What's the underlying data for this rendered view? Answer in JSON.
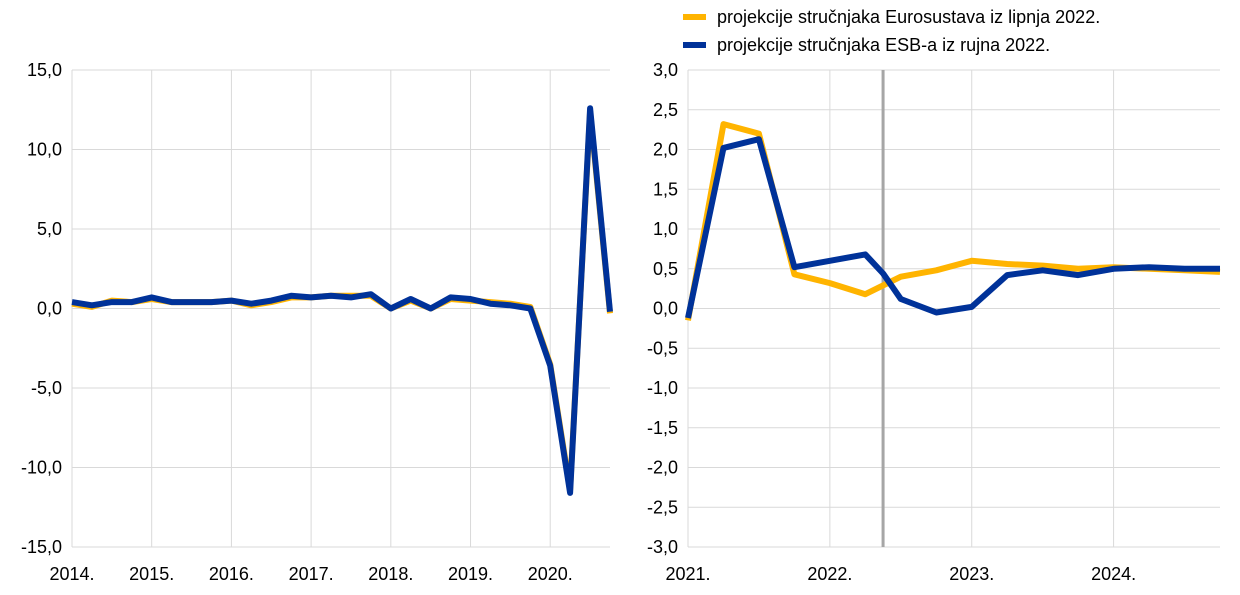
{
  "legend": {
    "items": [
      {
        "label": "projekcije stručnjaka Eurosustava iz lipnja 2022.",
        "color": "#FFB400"
      },
      {
        "label": "projekcije stručnjaka ESB-a iz rujna 2022.",
        "color": "#003299"
      }
    ],
    "placement": "top-right"
  },
  "chart_data": [
    {
      "type": "line",
      "title": "",
      "xlabel": "",
      "ylabel": "",
      "grid": true,
      "ylim": [
        -15,
        15
      ],
      "yticks": [
        "15,0",
        "10,0",
        "5,0",
        "0,0",
        "-5,0",
        "-10,0",
        "-15,0"
      ],
      "ytick_values": [
        15,
        10,
        5,
        0,
        -5,
        -10,
        -15
      ],
      "xlim": [
        2014,
        2020.75
      ],
      "xticks": [
        "2014.",
        "2015.",
        "2016.",
        "2017.",
        "2018.",
        "2019.",
        "2020."
      ],
      "xtick_values": [
        2014,
        2015,
        2016,
        2017,
        2018,
        2019,
        2020
      ],
      "x": [
        2014,
        2014.25,
        2014.5,
        2014.75,
        2015,
        2015.25,
        2015.5,
        2015.75,
        2016,
        2016.25,
        2016.5,
        2016.75,
        2017,
        2017.25,
        2017.5,
        2017.75,
        2018,
        2018.25,
        2018.5,
        2018.75,
        2019,
        2019.25,
        2019.5,
        2019.75,
        2020,
        2020.25,
        2020.5,
        2020.75
      ],
      "series": [
        {
          "name": "projekcije stručnjaka Eurosustava iz lipnja 2022.",
          "color": "#FFB400",
          "values": [
            0.3,
            0.1,
            0.5,
            0.4,
            0.6,
            0.4,
            0.4,
            0.4,
            0.5,
            0.2,
            0.4,
            0.7,
            0.7,
            0.8,
            0.8,
            0.8,
            0.0,
            0.5,
            0.0,
            0.6,
            0.5,
            0.4,
            0.3,
            0.1,
            -3.5,
            -11.4,
            12.4,
            -0.3
          ]
        },
        {
          "name": "projekcije stručnjaka ESB-a iz rujna 2022.",
          "color": "#003299",
          "values": [
            0.4,
            0.2,
            0.4,
            0.4,
            0.7,
            0.4,
            0.4,
            0.4,
            0.5,
            0.3,
            0.5,
            0.8,
            0.7,
            0.8,
            0.7,
            0.9,
            0.0,
            0.6,
            0.0,
            0.7,
            0.6,
            0.3,
            0.2,
            0.0,
            -3.6,
            -11.6,
            12.6,
            -0.2
          ]
        }
      ]
    },
    {
      "type": "line",
      "title": "",
      "xlabel": "",
      "ylabel": "",
      "grid": true,
      "ylim": [
        -3,
        3
      ],
      "yticks": [
        "3,0",
        "2,5",
        "2,0",
        "1,5",
        "1,0",
        "0,5",
        "0,0",
        "-0,5",
        "-1,0",
        "-1,5",
        "-2,0",
        "-2,5",
        "-3,0"
      ],
      "ytick_values": [
        3,
        2.5,
        2,
        1.5,
        1,
        0.5,
        0,
        -0.5,
        -1,
        -1.5,
        -2,
        -2.5,
        -3
      ],
      "xlim": [
        2021,
        2024.75
      ],
      "xticks": [
        "2021.",
        "2022.",
        "2023.",
        "2024."
      ],
      "xtick_values": [
        2021,
        2022,
        2023,
        2024
      ],
      "vertical_line_at": 2022.375,
      "vertical_line_color": "#A6A6A6",
      "x": [
        2021,
        2021.25,
        2021.5,
        2021.75,
        2022,
        2022.25,
        2022.5,
        2022.75,
        2023,
        2023.25,
        2023.5,
        2023.75,
        2024,
        2024.25,
        2024.5,
        2024.75
      ],
      "series": [
        {
          "name": "projekcije stručnjaka Eurosustava iz lipnja 2022.",
          "color": "#FFB400",
          "x": [
            2021,
            2021.25,
            2021.5,
            2021.75,
            2022,
            2022.25,
            2022.5,
            2022.75,
            2023,
            2023.25,
            2023.5,
            2023.75,
            2024,
            2024.25,
            2024.5,
            2024.75
          ],
          "values": [
            -0.15,
            2.32,
            2.2,
            0.43,
            0.32,
            0.18,
            0.4,
            0.48,
            0.6,
            0.56,
            0.54,
            0.5,
            0.52,
            0.5,
            0.48,
            0.46
          ]
        },
        {
          "name": "projekcije stručnjaka ESB-a iz rujna 2022.",
          "color": "#003299",
          "x": [
            2021,
            2021.25,
            2021.5,
            2021.75,
            2022,
            2022.25,
            2022.375,
            2022.5,
            2022.75,
            2023,
            2023.25,
            2023.5,
            2023.75,
            2024,
            2024.25,
            2024.5,
            2024.75
          ],
          "values": [
            -0.12,
            2.02,
            2.13,
            0.52,
            0.6,
            0.68,
            0.44,
            0.12,
            -0.05,
            0.02,
            0.42,
            0.48,
            0.42,
            0.5,
            0.52,
            0.5,
            0.5
          ]
        }
      ]
    }
  ]
}
